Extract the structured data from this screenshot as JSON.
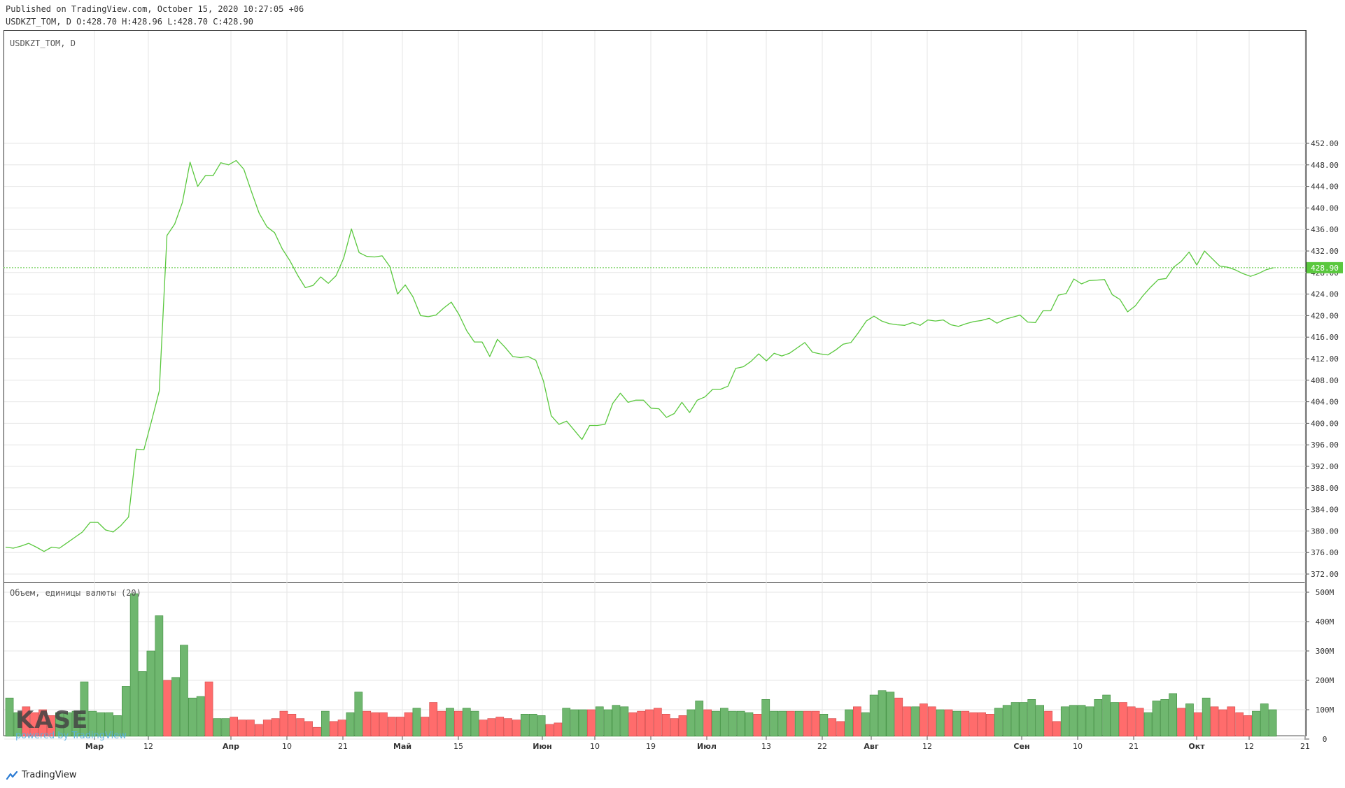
{
  "header": {
    "published": "Published on TradingView.com, October 15, 2020 10:27:05 +06",
    "ohlc": "USDKZT_TOM, D O:428.70 H:428.96 L:428.70 C:428.90"
  },
  "main_pane": {
    "title": "USDKZT_TOM, D",
    "last_price_label": "428.90"
  },
  "volume_pane": {
    "title": "Объем, единицы валюты (20)"
  },
  "footer": {
    "brand": "TradingView"
  },
  "watermark": {
    "logo_text": "KASE",
    "sub_text": "powered by TradingView"
  },
  "colors": {
    "line": "#5ac83e",
    "up": "#6fb76f",
    "down": "#ff6c6c",
    "grid": "#e6e6e6"
  },
  "chart_data": [
    {
      "type": "line",
      "title": "USDKZT_TOM, D",
      "ylim": [
        370,
        453
      ],
      "yticks": [
        372,
        376,
        380,
        384,
        388,
        392,
        396,
        400,
        404,
        408,
        412,
        416,
        420,
        424,
        428,
        432,
        436,
        440,
        444,
        448,
        452
      ],
      "ytick_labels": [
        "372.00",
        "376.00",
        "380.00",
        "384.00",
        "388.00",
        "392.00",
        "396.00",
        "400.00",
        "404.00",
        "408.00",
        "412.00",
        "416.00",
        "420.00",
        "424.00",
        "428.00",
        "432.00",
        "436.00",
        "440.00",
        "444.00",
        "448.00",
        "452.00"
      ],
      "xtick_labels": [
        "Мар",
        "12",
        "Апр",
        "10",
        "21",
        "Май",
        "15",
        "Июн",
        "10",
        "19",
        "Июл",
        "13",
        "22",
        "Авг",
        "12",
        "Сен",
        "10",
        "21",
        "Окт",
        "12",
        "21"
      ],
      "xtick_bold": [
        true,
        false,
        true,
        false,
        false,
        true,
        false,
        true,
        false,
        false,
        true,
        false,
        false,
        true,
        false,
        true,
        false,
        false,
        true,
        false,
        false
      ],
      "last_value": 428.9,
      "values": [
        377.0,
        376.8,
        377.2,
        377.7,
        377.0,
        376.2,
        377.0,
        376.8,
        377.8,
        378.8,
        379.8,
        381.6,
        381.6,
        380.2,
        379.8,
        381.0,
        382.6,
        395.2,
        395.1,
        400.5,
        406.0,
        434.9,
        437.0,
        441.0,
        448.5,
        444.0,
        446.0,
        446.0,
        448.4,
        448.0,
        448.8,
        447.2,
        443.0,
        439.0,
        436.5,
        435.4,
        432.4,
        430.2,
        427.5,
        425.2,
        425.6,
        427.2,
        426.0,
        427.4,
        430.7,
        436.1,
        431.7,
        431.0,
        430.9,
        431.1,
        429.1,
        424.0,
        425.7,
        423.5,
        420.0,
        419.8,
        420.1,
        421.4,
        422.5,
        420.2,
        417.2,
        415.1,
        415.1,
        412.4,
        415.6,
        414.1,
        412.4,
        412.2,
        412.4,
        411.7,
        407.8,
        401.4,
        399.8,
        400.4,
        398.7,
        397.0,
        399.6,
        399.6,
        399.8,
        403.7,
        405.6,
        403.9,
        404.3,
        404.3,
        402.8,
        402.7,
        401.1,
        401.8,
        403.9,
        402.0,
        404.3,
        404.9,
        406.3,
        406.3,
        406.9,
        410.2,
        410.5,
        411.5,
        412.9,
        411.6,
        413.0,
        412.5,
        413.0,
        414.0,
        415.0,
        413.2,
        412.9,
        412.7,
        413.6,
        414.7,
        415.0,
        416.9,
        419.0,
        419.9,
        419.0,
        418.5,
        418.3,
        418.2,
        418.7,
        418.2,
        419.2,
        419.0,
        419.2,
        418.3,
        418.0,
        418.5,
        418.9,
        419.1,
        419.5,
        418.6,
        419.3,
        419.7,
        420.1,
        418.8,
        418.7,
        420.9,
        420.9,
        423.8,
        424.1,
        426.8,
        425.9,
        426.5,
        426.6,
        426.7,
        423.9,
        423.0,
        420.7,
        421.8,
        423.7,
        425.3,
        426.7,
        426.9,
        429.0,
        430.1,
        431.8,
        429.4,
        432.0,
        430.6,
        429.2,
        429.0,
        428.5,
        427.8,
        427.3,
        427.8,
        428.5,
        428.9
      ]
    },
    {
      "type": "bar",
      "title": "Объем, единицы валюты (20)",
      "ylim": [
        0,
        500
      ],
      "unit": "M",
      "yticks": [
        0,
        100,
        200,
        300,
        400,
        500
      ],
      "ytick_labels": [
        "0",
        "100M",
        "200M",
        "300M",
        "400M",
        "500M"
      ],
      "values": [
        140,
        90,
        110,
        90,
        100,
        80,
        90,
        90,
        95,
        195,
        95,
        90,
        90,
        80,
        180,
        500,
        230,
        300,
        420,
        200,
        210,
        320,
        140,
        145,
        195,
        70,
        70,
        75,
        65,
        65,
        50,
        65,
        70,
        95,
        85,
        70,
        60,
        40,
        95,
        60,
        65,
        90,
        160,
        95,
        90,
        90,
        75,
        75,
        90,
        105,
        75,
        125,
        95,
        105,
        95,
        105,
        95,
        65,
        70,
        75,
        70,
        65,
        85,
        85,
        80,
        50,
        55,
        105,
        100,
        100,
        100,
        110,
        100,
        115,
        110,
        90,
        95,
        100,
        105,
        85,
        70,
        80,
        100,
        130,
        100,
        95,
        105,
        95,
        95,
        90,
        85,
        135,
        95,
        95,
        95,
        95,
        95,
        95,
        85,
        70,
        60,
        100,
        110,
        90,
        150,
        165,
        160,
        140,
        110,
        110,
        120,
        110,
        100,
        100,
        95,
        95,
        90,
        90,
        85,
        105,
        115,
        125,
        125,
        135,
        115,
        95,
        60,
        110,
        115,
        115,
        110,
        135,
        150,
        125,
        125,
        110,
        105,
        90,
        130,
        135,
        155,
        105,
        120,
        90,
        140,
        110,
        100,
        110,
        90,
        80,
        95,
        120,
        100
      ],
      "up": [
        true,
        true,
        false,
        false,
        false,
        false,
        true,
        true,
        true,
        true,
        true,
        true,
        true,
        true,
        true,
        true,
        true,
        true,
        true,
        false,
        true,
        true,
        true,
        true,
        false,
        true,
        true,
        false,
        false,
        false,
        false,
        false,
        false,
        false,
        false,
        false,
        false,
        false,
        true,
        false,
        false,
        true,
        true,
        false,
        false,
        false,
        false,
        false,
        false,
        true,
        false,
        false,
        false,
        true,
        false,
        true,
        true,
        false,
        false,
        false,
        false,
        false,
        true,
        true,
        true,
        false,
        false,
        true,
        true,
        true,
        false,
        true,
        true,
        true,
        true,
        false,
        false,
        false,
        false,
        false,
        false,
        false,
        true,
        true,
        false,
        true,
        true,
        true,
        true,
        true,
        false,
        true,
        true,
        true,
        false,
        true,
        false,
        false,
        true,
        false,
        false,
        true,
        false,
        true,
        true,
        true,
        true,
        false,
        false,
        true,
        false,
        false,
        true,
        false,
        true,
        false,
        false,
        false,
        false,
        true,
        true,
        true,
        true,
        true,
        true,
        false,
        false,
        true,
        true,
        true,
        true,
        true,
        true,
        true,
        false,
        false,
        false,
        true,
        true,
        true,
        true,
        false,
        true,
        false,
        true,
        false,
        false,
        false,
        false,
        false,
        true,
        true,
        true
      ]
    }
  ]
}
